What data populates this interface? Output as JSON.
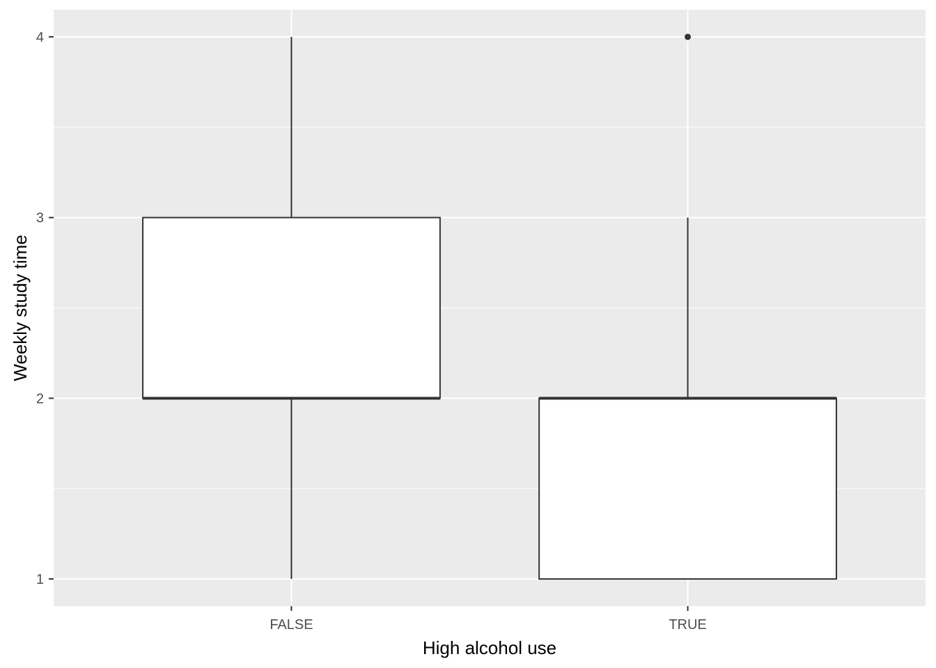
{
  "chart_data": {
    "type": "boxplot",
    "title": "",
    "xlabel": "High alcohol use",
    "ylabel": "Weekly study time",
    "categories": [
      "FALSE",
      "TRUE"
    ],
    "boxes": [
      {
        "category": "FALSE",
        "lower_whisker": 1,
        "q1": 2,
        "median": 2,
        "q3": 3,
        "upper_whisker": 4,
        "outliers": []
      },
      {
        "category": "TRUE",
        "lower_whisker": 1,
        "q1": 1,
        "median": 2,
        "q3": 2,
        "upper_whisker": 3,
        "outliers": [
          4
        ]
      }
    ],
    "yticks": [
      "1",
      "2",
      "3",
      "4"
    ],
    "ylim": [
      0.85,
      4.15
    ],
    "grid": true,
    "colors": {
      "panel": "#ebebeb",
      "grid_major": "#ffffff",
      "box_fill": "#ffffff",
      "box_line": "#333333",
      "tick_text": "#4d4d4d",
      "tick_mark": "#333333"
    }
  }
}
